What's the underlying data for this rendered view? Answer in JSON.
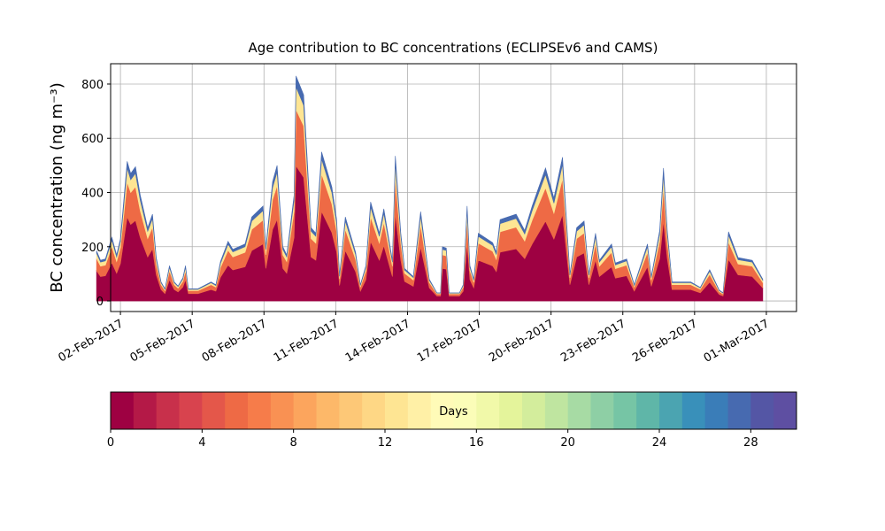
{
  "chart_data": {
    "type": "stackedarea",
    "title": "Age contribution to BC concentrations (ECLIPSEv6 and CAMS)",
    "ylabel": "BC concentration (ng m⁻³)",
    "x": [
      1.0,
      1.17,
      1.37,
      1.64,
      1.84,
      2.0,
      2.28,
      2.43,
      2.63,
      2.83,
      3.14,
      3.34,
      3.5,
      3.7,
      3.86,
      4.05,
      4.25,
      4.41,
      4.61,
      4.72,
      4.84,
      5.24,
      5.79,
      5.99,
      6.18,
      6.5,
      6.7,
      7.21,
      7.49,
      7.96,
      8.08,
      8.36,
      8.55,
      8.79,
      8.95,
      9.26,
      9.34,
      9.66,
      9.97,
      10.17,
      10.41,
      10.84,
      11.04,
      11.16,
      11.4,
      11.83,
      12.03,
      12.26,
      12.46,
      12.82,
      13.01,
      13.37,
      13.49,
      13.72,
      13.88,
      14.24,
      14.55,
      14.91,
      15.23,
      15.38,
      15.46,
      15.62,
      15.74,
      16.17,
      16.33,
      16.49,
      16.61,
      16.77,
      16.96,
      17.56,
      17.71,
      17.87,
      18.54,
      18.9,
      19.21,
      19.77,
      20.12,
      20.48,
      20.79,
      21.07,
      21.38,
      21.58,
      21.86,
      22.02,
      22.53,
      22.69,
      23.16,
      23.48,
      24.03,
      24.19,
      24.54,
      24.7,
      24.86,
      25.06,
      25.84,
      26.24,
      26.63,
      27.03,
      27.19,
      27.42,
      27.82,
      28.41,
      28.85
    ],
    "series": [
      {
        "color": "#9e0142",
        "values": [
          111,
          90,
          93,
          141,
          102,
          138,
          309,
          282,
          297,
          234,
          162,
          192,
          96,
          42,
          27,
          78,
          42,
          33,
          51,
          78,
          27,
          27,
          42,
          36,
          87,
          132,
          114,
          126,
          186,
          210,
          120,
          264,
          300,
          120,
          102,
          234,
          498,
          456,
          162,
          150,
          330,
          252,
          180,
          57,
          186,
          108,
          36,
          78,
          219,
          150,
          204,
          90,
          321,
          150,
          72,
          54,
          198,
          48,
          18,
          18,
          120,
          117,
          18,
          18,
          36,
          210,
          78,
          48,
          150,
          129,
          108,
          180,
          192,
          156,
          210,
          294,
          228,
          318,
          60,
          162,
          177,
          60,
          150,
          90,
          126,
          84,
          93,
          36,
          126,
          54,
          156,
          294,
          156,
          42,
          42,
          30,
          69,
          24,
          18,
          153,
          96,
          90,
          48
        ]
      },
      {
        "color": "#ee6a45",
        "values": [
          46,
          38,
          39,
          59,
          43,
          58,
          129,
          118,
          124,
          98,
          68,
          80,
          40,
          18,
          11,
          33,
          18,
          14,
          21,
          33,
          11,
          11,
          18,
          15,
          36,
          55,
          48,
          53,
          78,
          88,
          50,
          110,
          125,
          50,
          43,
          98,
          208,
          190,
          68,
          63,
          138,
          105,
          75,
          24,
          78,
          45,
          15,
          33,
          91,
          63,
          85,
          38,
          134,
          63,
          30,
          23,
          83,
          20,
          8,
          8,
          50,
          49,
          8,
          8,
          15,
          88,
          33,
          20,
          63,
          54,
          45,
          75,
          80,
          65,
          88,
          123,
          95,
          133,
          25,
          68,
          74,
          25,
          63,
          38,
          53,
          35,
          39,
          15,
          53,
          23,
          65,
          123,
          65,
          18,
          18,
          13,
          29,
          10,
          8,
          64,
          40,
          38,
          20
        ]
      },
      {
        "color": "#fee593",
        "values": [
          19,
          15,
          16,
          24,
          17,
          23,
          52,
          47,
          50,
          39,
          27,
          32,
          16,
          7,
          5,
          13,
          7,
          6,
          9,
          13,
          5,
          5,
          7,
          6,
          15,
          22,
          19,
          21,
          31,
          35,
          20,
          44,
          50,
          20,
          17,
          39,
          83,
          76,
          27,
          25,
          55,
          42,
          30,
          10,
          31,
          18,
          6,
          13,
          37,
          25,
          34,
          15,
          54,
          25,
          12,
          9,
          33,
          8,
          3,
          3,
          20,
          20,
          3,
          3,
          6,
          35,
          13,
          8,
          25,
          22,
          18,
          30,
          32,
          26,
          35,
          49,
          38,
          53,
          10,
          27,
          30,
          10,
          25,
          15,
          21,
          14,
          16,
          6,
          21,
          9,
          26,
          49,
          26,
          7,
          7,
          5,
          12,
          4,
          3,
          26,
          16,
          15,
          8
        ]
      },
      {
        "color": "#476ab0",
        "values": [
          9,
          7,
          7,
          11,
          8,
          11,
          25,
          23,
          24,
          19,
          13,
          16,
          8,
          3,
          2,
          6,
          3,
          2,
          4,
          6,
          2,
          2,
          3,
          3,
          7,
          11,
          9,
          10,
          15,
          17,
          10,
          22,
          25,
          10,
          8,
          19,
          41,
          38,
          13,
          12,
          27,
          21,
          15,
          4,
          15,
          9,
          3,
          6,
          18,
          12,
          17,
          7,
          26,
          12,
          6,
          4,
          16,
          4,
          1,
          1,
          10,
          9,
          1,
          1,
          3,
          17,
          6,
          4,
          12,
          10,
          9,
          15,
          16,
          13,
          17,
          24,
          19,
          26,
          5,
          13,
          14,
          5,
          12,
          7,
          10,
          7,
          7,
          3,
          10,
          4,
          13,
          24,
          13,
          3,
          3,
          2,
          5,
          2,
          1,
          12,
          8,
          7,
          4
        ]
      }
    ],
    "xlim": [
      1.59,
      30.26
    ],
    "xticks": [
      {
        "value": 2,
        "label": "02-Feb-2017"
      },
      {
        "value": 5,
        "label": "05-Feb-2017"
      },
      {
        "value": 8,
        "label": "08-Feb-2017"
      },
      {
        "value": 11,
        "label": "11-Feb-2017"
      },
      {
        "value": 14,
        "label": "14-Feb-2017"
      },
      {
        "value": 17,
        "label": "17-Feb-2017"
      },
      {
        "value": 20,
        "label": "20-Feb-2017"
      },
      {
        "value": 23,
        "label": "23-Feb-2017"
      },
      {
        "value": 26,
        "label": "26-Feb-2017"
      },
      {
        "value": 29,
        "label": "01-Mar-2017"
      }
    ],
    "ylim": [
      -39,
      875
    ],
    "yticks": [
      0,
      200,
      400,
      600,
      800
    ],
    "grid": true,
    "colorbar": {
      "label": "Days",
      "lim": [
        0,
        30
      ],
      "ticks": [
        0,
        4,
        8,
        12,
        16,
        20,
        24,
        28
      ],
      "colors": [
        "#9e0142",
        "#b41947",
        "#c8304b",
        "#d8434e",
        "#e4574a",
        "#ee6a45",
        "#f67c4a",
        "#f99153",
        "#fca55d",
        "#fdb869",
        "#fdc877",
        "#fed785",
        "#fee593",
        "#fff0a6",
        "#fffbb8",
        "#fbfdb8",
        "#f1f9a9",
        "#e4f49b",
        "#d3ed9c",
        "#bfe5a0",
        "#a7dba4",
        "#8ecfa5",
        "#76c5a5",
        "#5fb6a8",
        "#4ba4b1",
        "#3990ba",
        "#3a7db8",
        "#476ab0",
        "#5456a5",
        "#5e4fa2"
      ]
    }
  }
}
